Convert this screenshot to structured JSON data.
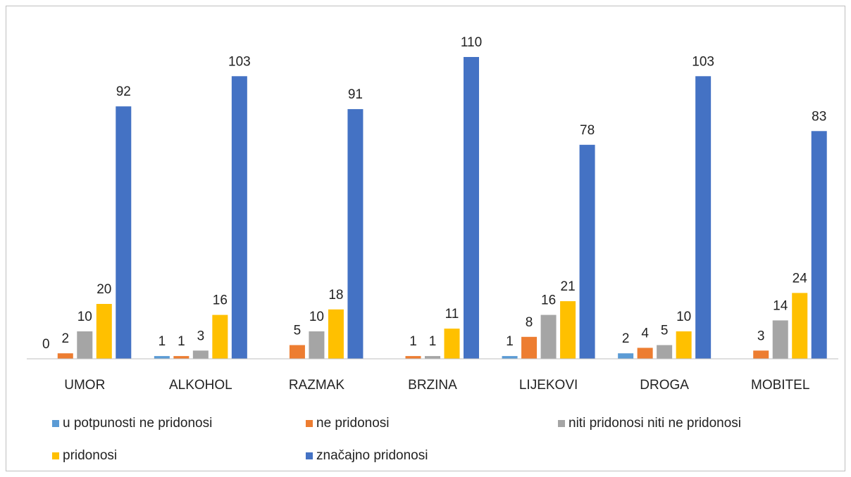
{
  "chart_data": {
    "type": "bar",
    "categories": [
      "UMOR",
      "ALKOHOL",
      "RAZMAK",
      "BRZINA",
      "LIJEKOVI",
      "DROGA",
      "MOBITEL"
    ],
    "series": [
      {
        "name": "u potpunosti ne pridonosi",
        "color": "#5b9bd5",
        "values": [
          0,
          1,
          null,
          null,
          1,
          2,
          null
        ]
      },
      {
        "name": "ne pridonosi",
        "color": "#ed7d31",
        "values": [
          2,
          1,
          5,
          1,
          8,
          4,
          3
        ]
      },
      {
        "name": "niti pridonosi niti ne pridonosi",
        "color": "#a5a5a5",
        "values": [
          10,
          3,
          10,
          1,
          16,
          5,
          14
        ]
      },
      {
        "name": "pridonosi",
        "color": "#ffc000",
        "values": [
          20,
          16,
          18,
          11,
          21,
          10,
          24
        ]
      },
      {
        "name": "značajno pridonosi",
        "color": "#4472c4",
        "values": [
          92,
          103,
          91,
          110,
          78,
          103,
          83
        ]
      }
    ],
    "ylim": [
      0,
      120
    ],
    "legend": "bottom"
  }
}
